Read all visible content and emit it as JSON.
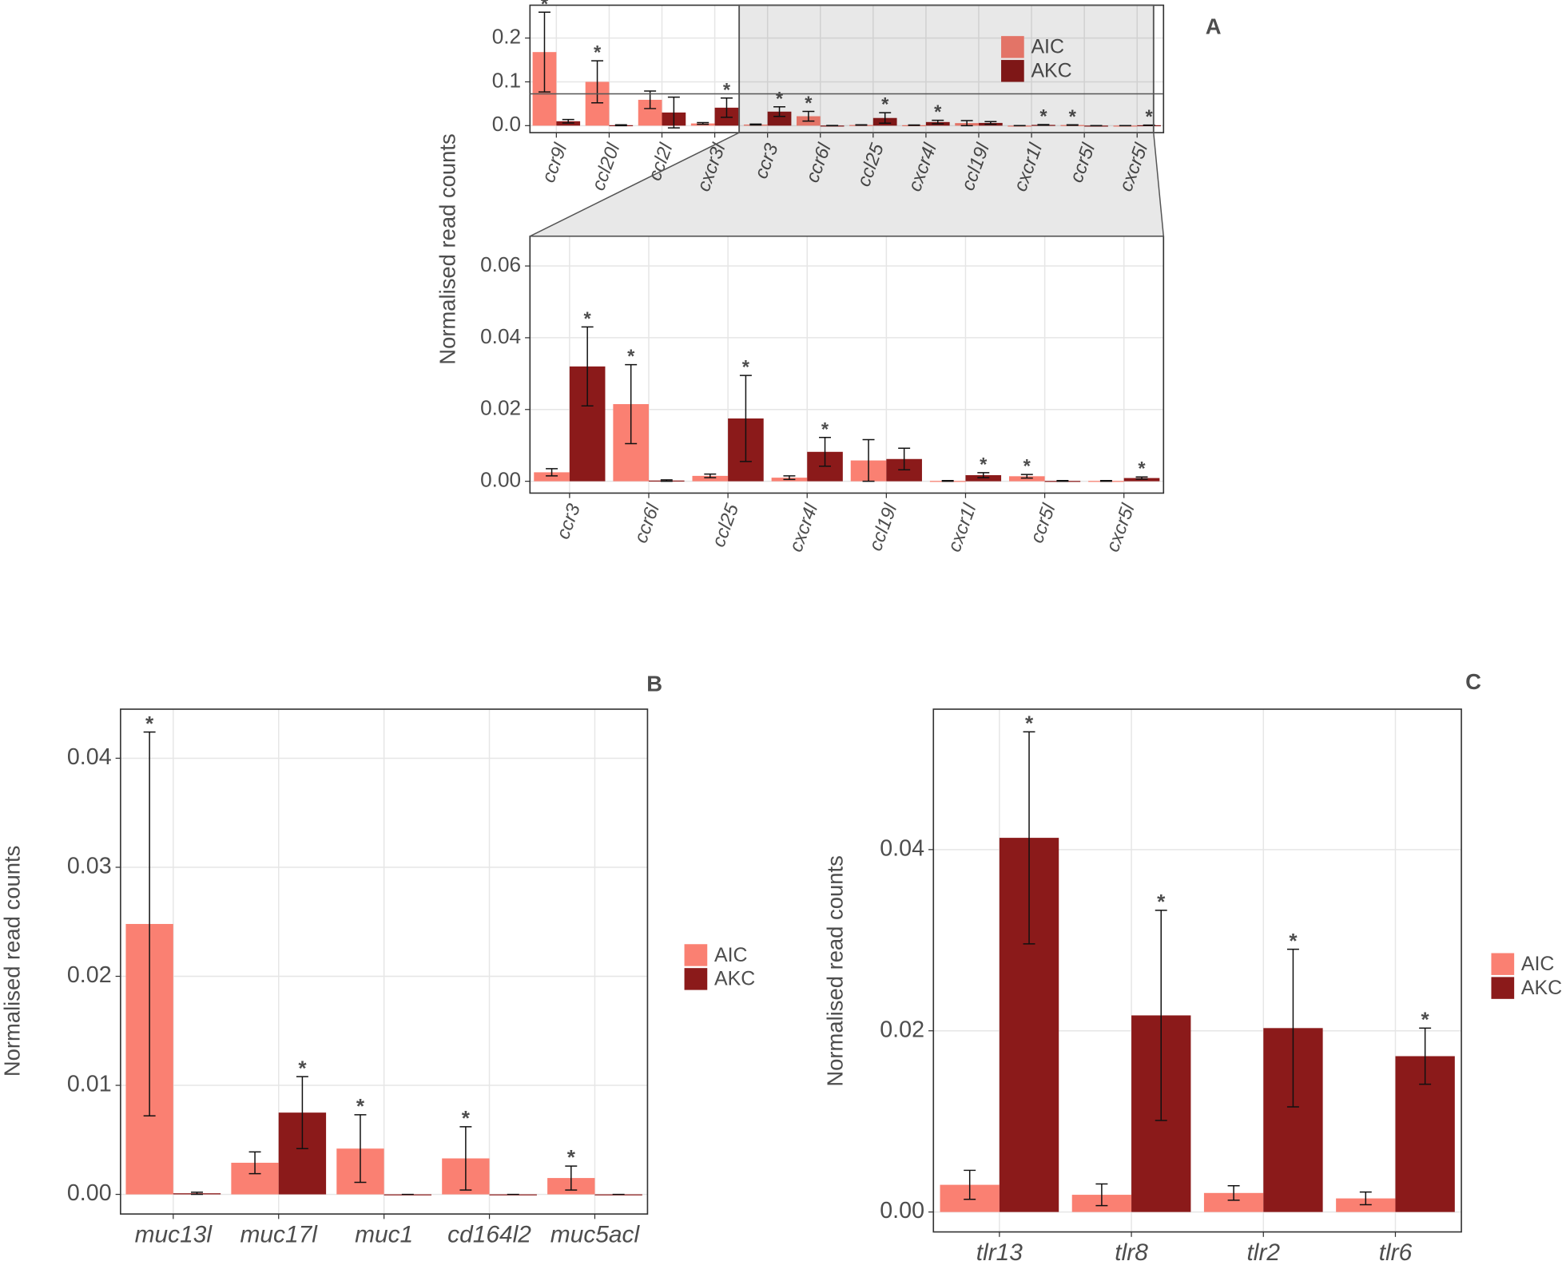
{
  "chart_data": [
    {
      "type": "bar",
      "panel": "A",
      "ylabel": "Normalised read counts",
      "legend": "inside",
      "categories": [
        "ccr9l",
        "ccl20l",
        "ccl2l",
        "cxcr3l",
        "ccr3",
        "ccr6l",
        "ccl25",
        "cxcr4l",
        "ccl19l",
        "cxcr1l",
        "ccr5l",
        "cxcr5l"
      ],
      "series": [
        {
          "name": "AIC",
          "color": "#fa8072",
          "values": [
            0.168,
            0.1,
            0.059,
            0.005,
            0.0025,
            0.0215,
            0.0015,
            0.001,
            0.0058,
            0.0001,
            0.0014,
            0.0001
          ],
          "errors": [
            0.091,
            0.048,
            0.02,
            0.002,
            0.001,
            0.011,
            0.0005,
            0.0005,
            0.0058,
            0.0001,
            0.0005,
            0.0001
          ],
          "annotations": [
            "*",
            "*",
            null,
            null,
            null,
            "*",
            null,
            null,
            null,
            null,
            "*",
            null
          ]
        },
        {
          "name": "AKC",
          "color": "#8b1a1a",
          "values": [
            0.01,
            0.001,
            0.03,
            0.041,
            0.032,
            0.0002,
            0.0175,
            0.0082,
            0.0062,
            0.0017,
            0.0001,
            0.0009
          ],
          "errors": [
            0.004,
            0.001,
            0.035,
            0.022,
            0.011,
            0.0002,
            0.012,
            0.004,
            0.003,
            0.0007,
            0.0001,
            0.0003
          ],
          "annotations": [
            null,
            null,
            null,
            "*",
            "*",
            null,
            "*",
            "*",
            null,
            "*",
            null,
            "*"
          ]
        }
      ],
      "ylim": [
        -0.016,
        0.275
      ],
      "yticks": [
        {
          "value": 0,
          "label": "0.0"
        },
        {
          "value": 0.1,
          "label": "0.1"
        },
        {
          "value": 0.2,
          "label": "0.2"
        }
      ],
      "grid": true
    },
    {
      "type": "bar",
      "categories": [
        "ccr3",
        "ccr6l",
        "ccl25",
        "cxcr4l",
        "ccl19l",
        "cxcr1l",
        "ccr5l",
        "cxcr5l"
      ],
      "series": [
        {
          "color": "#fa8072",
          "values": [
            0.0025,
            0.0215,
            0.0015,
            0.001,
            0.0058,
            0.0001,
            0.0014,
            0.0001
          ],
          "errors": [
            0.001,
            0.011,
            0.0005,
            0.0005,
            0.0058,
            0.0001,
            0.0005,
            0.0001
          ],
          "annotations": [
            null,
            "*",
            null,
            null,
            null,
            null,
            "*",
            null
          ]
        },
        {
          "color": "#8b1a1a",
          "values": [
            0.032,
            0.0002,
            0.0175,
            0.0082,
            0.0062,
            0.0017,
            0.0001,
            0.0009
          ],
          "errors": [
            0.011,
            0.0002,
            0.012,
            0.004,
            0.003,
            0.0007,
            0.0001,
            0.0003
          ],
          "annotations": [
            "*",
            null,
            "*",
            "*",
            null,
            "*",
            null,
            "*"
          ]
        }
      ],
      "ylim": [
        -0.0033,
        0.0683
      ],
      "yticks": [
        {
          "value": 0,
          "label": "0.00"
        },
        {
          "value": 0.02,
          "label": "0.02"
        },
        {
          "value": 0.04,
          "label": "0.04"
        },
        {
          "value": 0.06,
          "label": "0.06"
        }
      ],
      "grid": true
    },
    {
      "type": "bar",
      "panel": "B",
      "ylabel": "Normalised read counts",
      "legend": "right",
      "categories": [
        "muc13l",
        "muc17l",
        "muc1",
        "cd164l2",
        "muc5acl"
      ],
      "series": [
        {
          "name": "AIC",
          "color": "#fa8072",
          "values": [
            0.0248,
            0.0029,
            0.0042,
            0.0033,
            0.0015
          ],
          "errors": [
            0.0176,
            0.001,
            0.0031,
            0.0029,
            0.0011
          ],
          "annotations": [
            "*",
            null,
            "*",
            "*",
            "*"
          ]
        },
        {
          "name": "AKC",
          "color": "#8b1a1a",
          "values": [
            0.0001,
            0.0075,
            0,
            0,
            0
          ],
          "errors": [
            0.0001,
            0.0033,
            0,
            0,
            0
          ],
          "annotations": [
            null,
            "*",
            null,
            null,
            null
          ]
        }
      ],
      "ylim": [
        -0.0018,
        0.0445
      ],
      "yticks": [
        {
          "value": 0,
          "label": "0.00"
        },
        {
          "value": 0.01,
          "label": "0.01"
        },
        {
          "value": 0.02,
          "label": "0.02"
        },
        {
          "value": 0.03,
          "label": "0.03"
        },
        {
          "value": 0.04,
          "label": "0.04"
        }
      ],
      "grid": true
    },
    {
      "type": "bar",
      "panel": "C",
      "ylabel": "Normalised read counts",
      "legend": "right",
      "categories": [
        "tlr13",
        "tlr8",
        "tlr2",
        "tlr6"
      ],
      "series": [
        {
          "name": "AIC",
          "color": "#fa8072",
          "values": [
            0.003,
            0.0019,
            0.0021,
            0.0015
          ],
          "errors": [
            0.0016,
            0.0012,
            0.0008,
            0.0007
          ],
          "annotations": [
            null,
            null,
            null,
            null
          ]
        },
        {
          "name": "AKC",
          "color": "#8b1a1a",
          "values": [
            0.0413,
            0.0217,
            0.0203,
            0.0172
          ],
          "errors": [
            0.0117,
            0.0116,
            0.0087,
            0.0031
          ],
          "annotations": [
            "*",
            "*",
            "*",
            "*"
          ]
        }
      ],
      "ylim": [
        -0.0022,
        0.0555
      ],
      "yticks": [
        {
          "value": 0,
          "label": "0.00"
        },
        {
          "value": 0.02,
          "label": "0.02"
        },
        {
          "value": 0.04,
          "label": "0.04"
        }
      ],
      "grid": true
    }
  ]
}
